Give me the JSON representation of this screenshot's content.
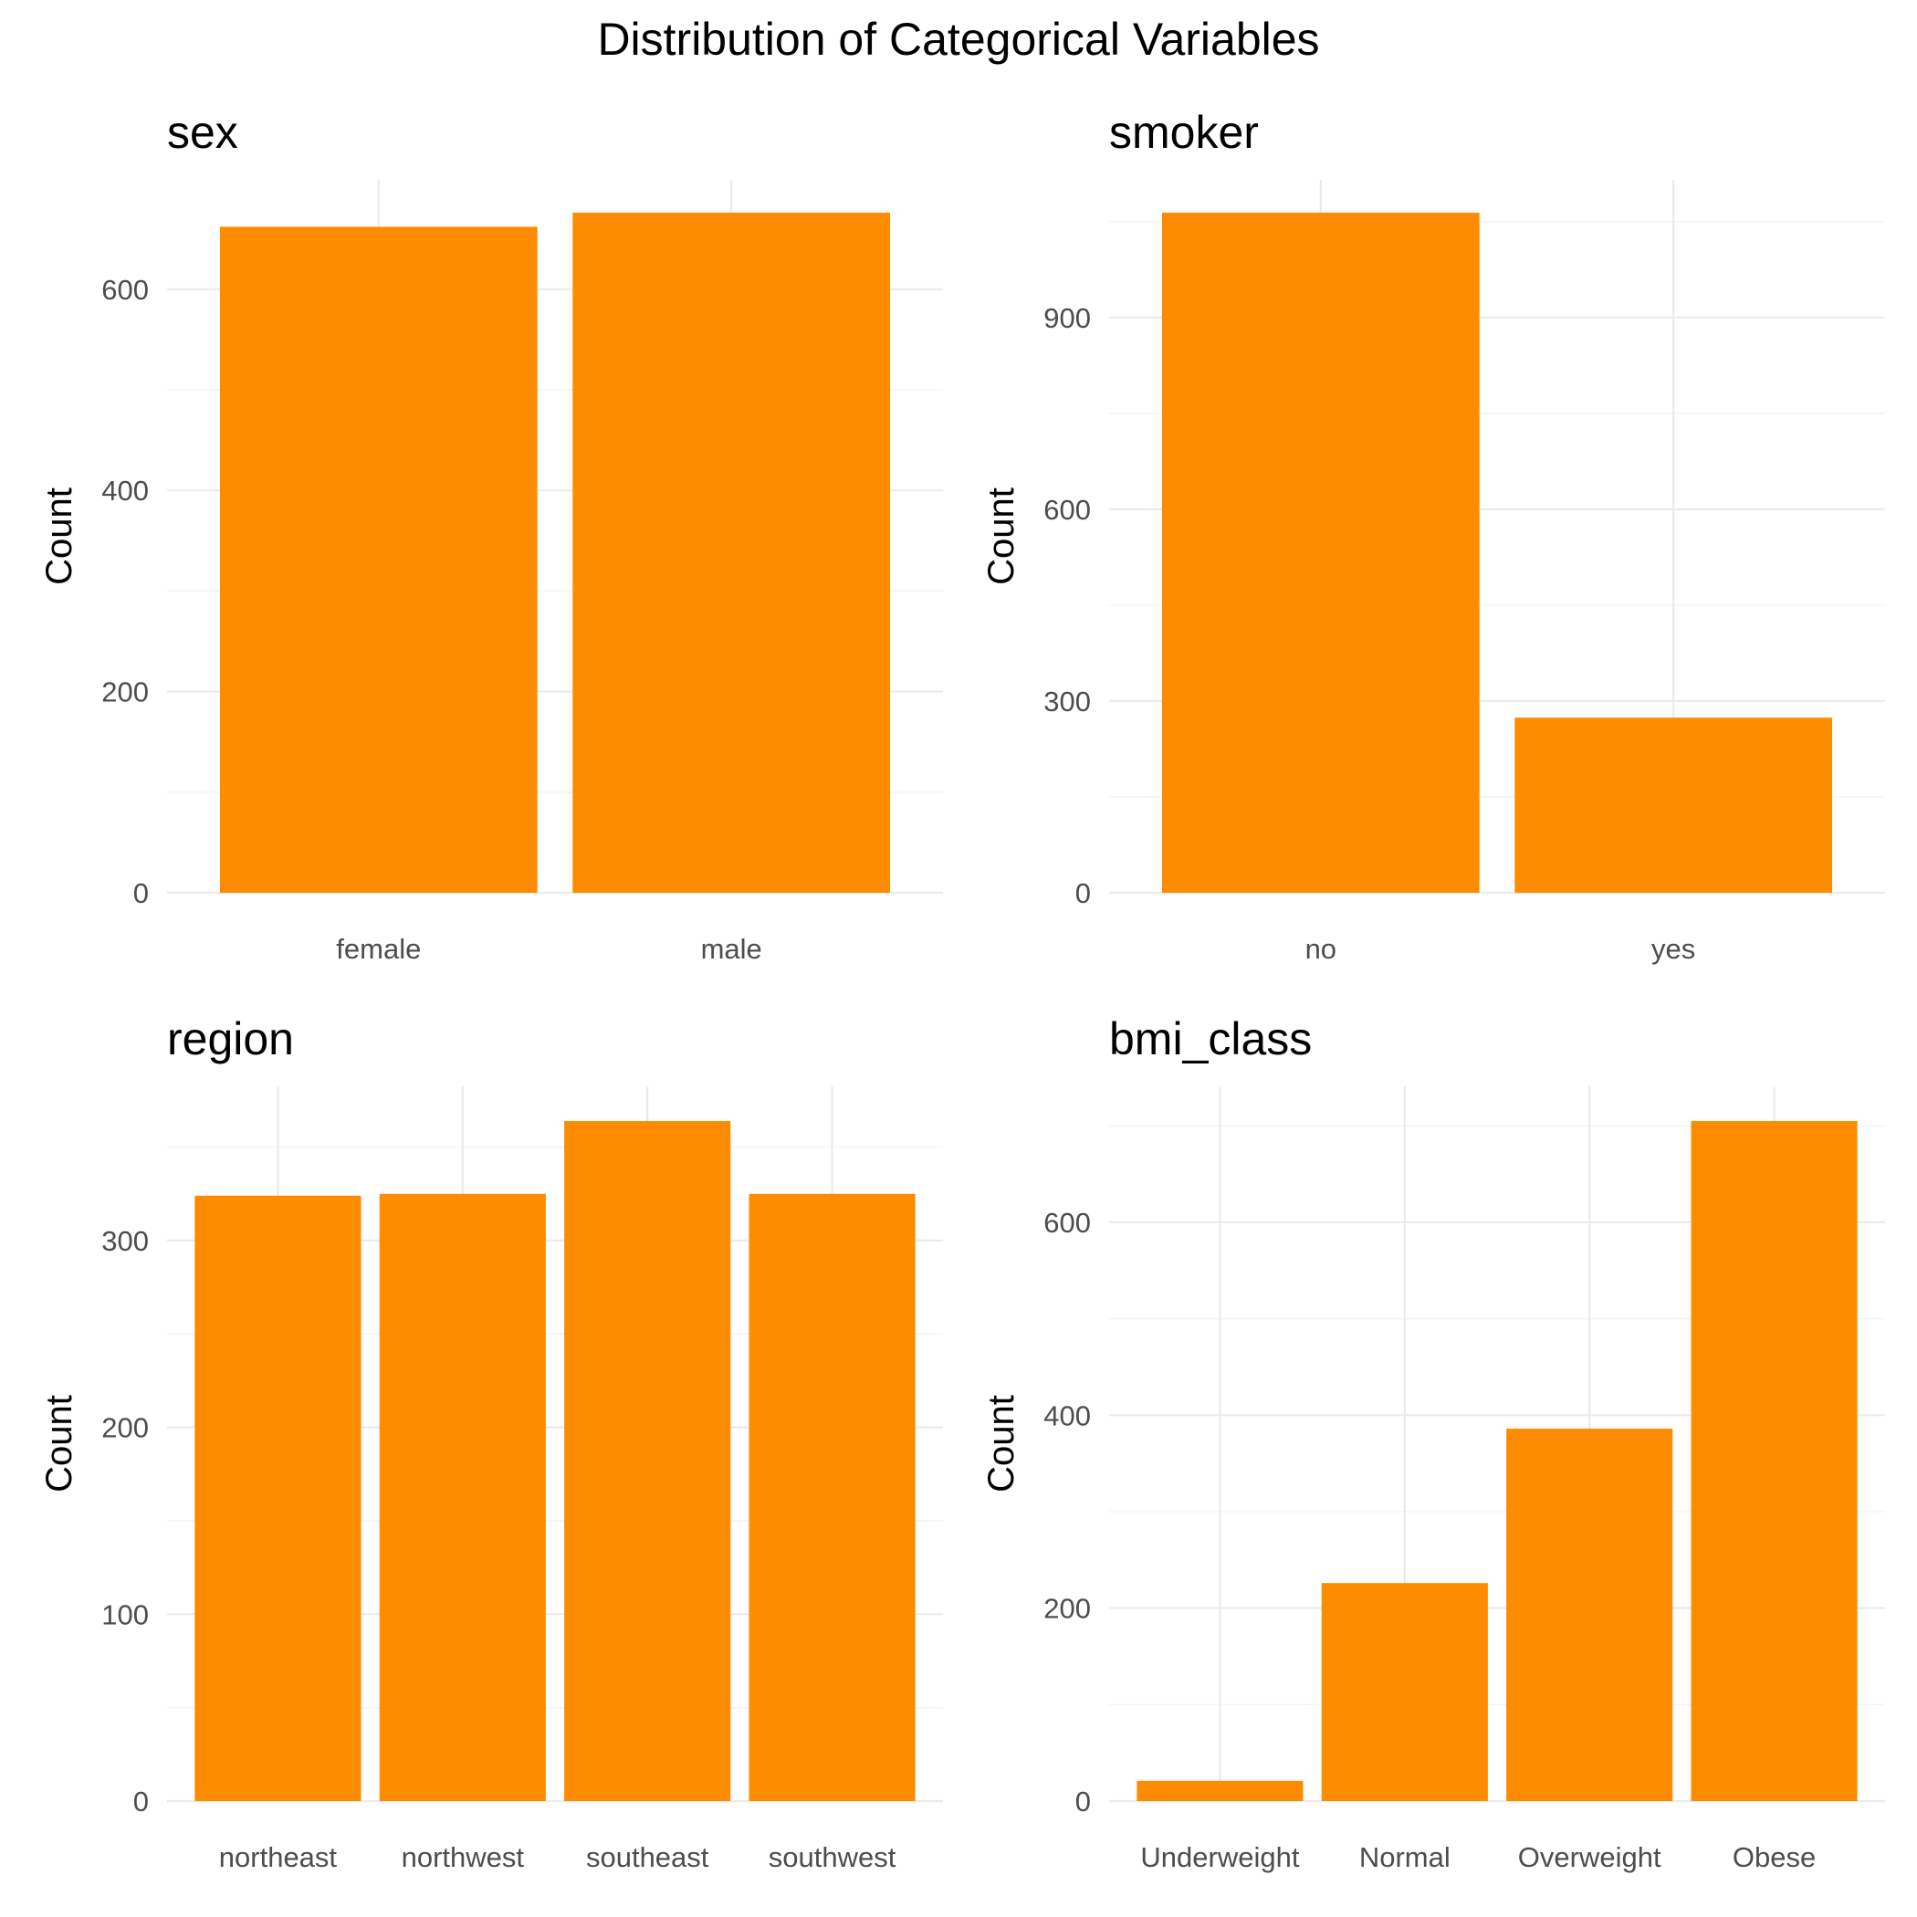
{
  "figure": {
    "title": "Distribution of Categorical Variables",
    "bar_color": "#FF8C00",
    "grid_color": "#EBEBEB",
    "background": "#FFFFFF"
  },
  "chart_data": [
    {
      "type": "bar",
      "title": "sex",
      "xlabel": "",
      "ylabel": "Count",
      "categories": [
        "female",
        "male"
      ],
      "values": [
        662,
        676
      ],
      "ylim": [
        0,
        676
      ],
      "yticks": [
        0,
        200,
        400,
        600
      ],
      "grid": true
    },
    {
      "type": "bar",
      "title": "smoker",
      "xlabel": "",
      "ylabel": "Count",
      "categories": [
        "no",
        "yes"
      ],
      "values": [
        1064,
        274
      ],
      "ylim": [
        0,
        1064
      ],
      "yticks": [
        0,
        300,
        600,
        900
      ],
      "grid": true
    },
    {
      "type": "bar",
      "title": "region",
      "xlabel": "",
      "ylabel": "Count",
      "categories": [
        "northeast",
        "northwest",
        "southeast",
        "southwest"
      ],
      "values": [
        324,
        325,
        364,
        325
      ],
      "ylim": [
        0,
        364
      ],
      "yticks": [
        0,
        100,
        200,
        300
      ],
      "grid": true
    },
    {
      "type": "bar",
      "title": "bmi_class",
      "xlabel": "",
      "ylabel": "Count",
      "categories": [
        "Underweight",
        "Normal",
        "Overweight",
        "Obese"
      ],
      "values": [
        21,
        226,
        386,
        705
      ],
      "ylim": [
        0,
        705
      ],
      "yticks": [
        0,
        200,
        400,
        600
      ],
      "grid": true
    }
  ]
}
